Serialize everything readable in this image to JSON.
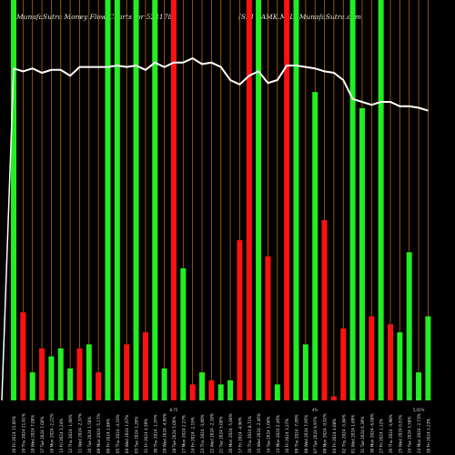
{
  "header": {
    "title_left": "MunafaSutra  Money Flow  Charts for 524178",
    "title_right": "(SRI RAMK.MIL) MunafaSutra.com"
  },
  "chart_data": {
    "type": "bar",
    "colors": {
      "up": "#22ee22",
      "down": "#ff1111",
      "line": "#ffffff",
      "grid": "#b8660b"
    },
    "categories": [
      "20 Fri 2024 15,00%",
      "19 Thu 2024 21,01%",
      "18 Wed 2024 7,00%",
      "17 Tue 2024 7,00%",
      "16 Mon 2024 -2,22%",
      "13 Fri 2024 3,24%",
      "12 Thu 2024 -1,00%",
      "11 Wed 2024 -2,37%",
      "10 Tue 2024 1,50%",
      "09 Mon 2024 -5,17%",
      "06 Fri 2024 2,86%",
      "05 Thu 2024 -4,16%",
      "04 Wed 2024 1,67%",
      "03 Tue 2024 1,20%",
      "31 Fri 2024 4,59%",
      "30 Thu 2024 -1,97%",
      "29 Wed 2024 -4,96%",
      "28 Tue 2024 5,00%",
      "27 Mon 2024 2,27%",
      "24 Fri 2024 -2,19%",
      "23 Thu 2024 -3,00%",
      "22 Wed 2024 -2,18%",
      "21 Tue 2024 5,00%",
      "20 Mon 2024 -5,00%",
      "17 Fri 2024 -4,90%",
      "16 Thu 2024 8,71%",
      "15 Wed 2024 -2,46%",
      "14 Tue 2024 1,00%",
      "13 Mon 2024 2,46%",
      "10 Fri 2024 3,27%",
      "09 Thu 2024 -7,09%",
      "08 Wed 2024 7,95%",
      "07 Tue 2024 9,97%",
      "06 Mon 2024 -9,92%",
      "03 Fri 2024 4,08%",
      "02 Thu 2024 -5,84%",
      "01 Wed 2024 1,69%",
      "31 Tue 2024 6,39%",
      "30 Mon 2024 -6,08%",
      "27 Fri 2024 1,12%",
      "26 Thu 2024 -3,98%",
      "25 Wed 2024 0,61%",
      "24 Tue 2024 3,58%",
      "23 Mon 2024 -2,73%",
      "20 Fri 2024 1,23%"
    ],
    "values": [
      100,
      22,
      7,
      13,
      11,
      13,
      8,
      13,
      14,
      7,
      100,
      100,
      14,
      100,
      17,
      100,
      8,
      100,
      33,
      4,
      7,
      5,
      4,
      5,
      40,
      100,
      100,
      36,
      4,
      100,
      100,
      14,
      77,
      45,
      1,
      18,
      100,
      73,
      21,
      100,
      19,
      17,
      37,
      7,
      21
    ],
    "directions": [
      "up",
      "down",
      "up",
      "down",
      "up",
      "up",
      "up",
      "down",
      "up",
      "down",
      "up",
      "up",
      "down",
      "up",
      "down",
      "up",
      "up",
      "down",
      "up",
      "down",
      "up",
      "down",
      "up",
      "up",
      "down",
      "down",
      "up",
      "down",
      "up",
      "down",
      "up",
      "up",
      "up",
      "down",
      "down",
      "down",
      "up",
      "up",
      "down",
      "up",
      "down",
      "up",
      "up",
      "up",
      "up"
    ],
    "price_line": [
      78,
      76,
      78,
      75,
      77,
      77,
      73,
      79,
      79,
      79,
      79,
      80,
      79,
      80,
      77,
      82,
      79,
      82,
      82,
      85,
      81,
      82,
      79,
      70,
      67,
      73,
      76,
      68,
      70,
      80,
      80,
      79,
      78,
      76,
      75,
      70,
      57,
      55,
      53,
      55,
      55,
      52,
      52,
      51,
      49
    ],
    "axis_labels": [
      {
        "index": 17,
        "text": "8,75"
      },
      {
        "index": 32,
        "text": "4%"
      },
      {
        "index": 43,
        "text": "5,02%"
      }
    ],
    "ylim": [
      0,
      100
    ]
  }
}
